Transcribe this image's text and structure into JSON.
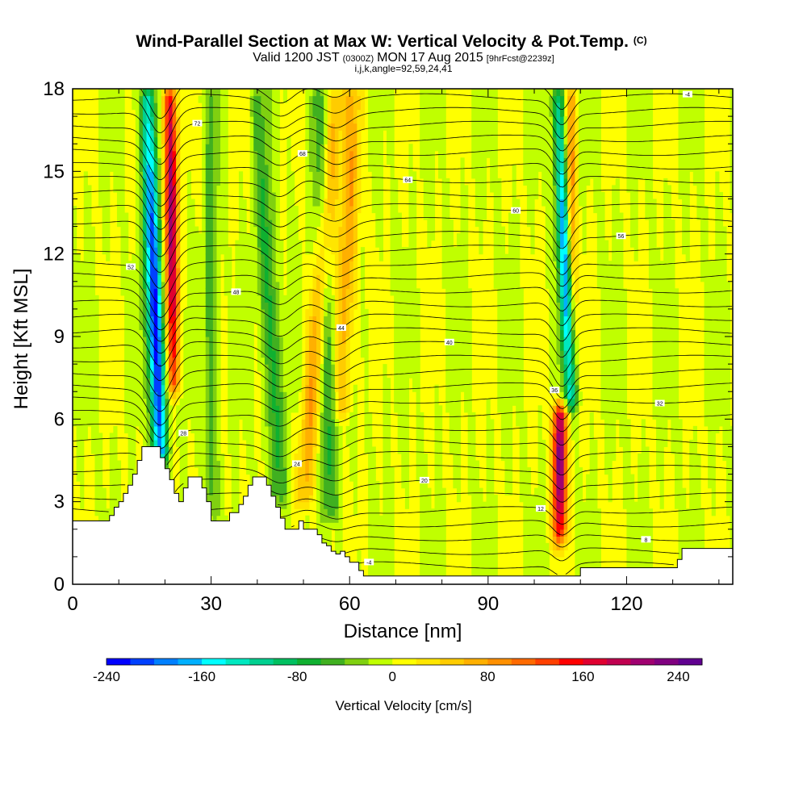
{
  "chart_data": {
    "type": "heatmap",
    "title": "Wind-Parallel Section at Max W: Vertical Velocity & Pot.Temp.",
    "title_mark": "(C)",
    "subtitle": {
      "prefix": "Valid 1200 JST",
      "zulu": "(0300Z)",
      "date": "MON 17 Aug 2015",
      "forecast": "[9hrFcst@2239z]"
    },
    "subtitle2": "i,j,k,angle=92,59,24,41",
    "xlabel": "Distance [nm]",
    "ylabel": "Height [Kft MSL]",
    "xlim": [
      0,
      143
    ],
    "ylim": [
      0,
      18
    ],
    "x_ticks": [
      0,
      30,
      60,
      90,
      120
    ],
    "y_ticks": [
      0,
      3,
      6,
      9,
      12,
      15,
      18
    ],
    "grid": false,
    "colorbar": {
      "label": "Vertical Velocity [cm/s]",
      "range": [
        -240,
        260
      ],
      "ticks": [
        -240,
        -160,
        -80,
        0,
        80,
        160,
        240
      ],
      "colors": [
        "#0000ff",
        "#0040ff",
        "#0080ff",
        "#00b0ff",
        "#00ffff",
        "#00e8c0",
        "#00d090",
        "#00c060",
        "#10b030",
        "#40b020",
        "#80d010",
        "#c0ff00",
        "#ffff00",
        "#ffe600",
        "#ffcc00",
        "#ffb000",
        "#ff9000",
        "#ff6a00",
        "#ff4000",
        "#ff0000",
        "#e00030",
        "#c00050",
        "#a00070",
        "#800080",
        "#600090"
      ]
    },
    "vertical_velocity_features": [
      {
        "name": "downdraft",
        "x_top": 16,
        "x_bottom": 19,
        "z_top": 18,
        "z_bottom": 4.5,
        "peak": -240,
        "peak_z": 9.5,
        "width": 1.6
      },
      {
        "name": "updraft",
        "x_top": 21,
        "x_bottom": 22,
        "z_top": 18,
        "z_bottom": 7,
        "peak": 220,
        "peak_z": 14,
        "width": 1.3
      },
      {
        "name": "sinking",
        "x_top": 30,
        "x_bottom": 30,
        "z_top": 18,
        "z_bottom": 2.5,
        "peak": -60,
        "peak_z": 10,
        "width": 1.5
      },
      {
        "name": "sinking",
        "x_top": 40,
        "x_bottom": 45,
        "z_top": 18,
        "z_bottom": 3,
        "peak": -80,
        "peak_z": 9,
        "width": 1.8
      },
      {
        "name": "sinking",
        "x_top": 53,
        "x_bottom": 56,
        "z_top": 18,
        "z_bottom": 2.5,
        "peak": -80,
        "peak_z": 9,
        "width": 1.8
      },
      {
        "name": "rising",
        "x_top": 57,
        "x_bottom": 50,
        "z_top": 18,
        "z_bottom": 3,
        "peak": 90,
        "peak_z": 10,
        "width": 2.0
      },
      {
        "name": "rising",
        "x_top": 61,
        "x_bottom": 58,
        "z_top": 18,
        "z_bottom": 6,
        "peak": 80,
        "peak_z": 12,
        "width": 2.0
      },
      {
        "name": "downdraft",
        "x_top": 105,
        "x_bottom": 108,
        "z_top": 18,
        "z_bottom": 6.5,
        "peak": -190,
        "peak_z": 11,
        "width": 1.4
      },
      {
        "name": "updraft",
        "x_top": 105.5,
        "x_bottom": 105.5,
        "z_top": 6.5,
        "z_bottom": 1.5,
        "peak": 240,
        "peak_z": 4.5,
        "width": 1.5
      },
      {
        "name": "rising",
        "x_top": 108,
        "x_bottom": 108,
        "z_top": 18,
        "z_bottom": 7,
        "peak": 90,
        "peak_z": 14,
        "width": 1.2
      }
    ],
    "potential_temperature_contours": {
      "interval_k": 1,
      "count": 36,
      "labels": [
        "-4",
        "8",
        "12",
        "20",
        "24",
        "28",
        "32",
        "36",
        "40",
        "44",
        "48",
        "52",
        "56",
        "60",
        "64",
        "68",
        "72"
      ]
    },
    "terrain": [
      [
        0,
        2.3
      ],
      [
        6,
        2.3
      ],
      [
        8,
        2.5
      ],
      [
        9,
        2.8
      ],
      [
        10,
        3.0
      ],
      [
        11,
        3.3
      ],
      [
        12,
        3.6
      ],
      [
        13,
        4.0
      ],
      [
        14,
        4.5
      ],
      [
        15,
        5.0
      ],
      [
        18,
        5.0
      ],
      [
        19,
        4.6
      ],
      [
        20,
        4.2
      ],
      [
        21,
        3.8
      ],
      [
        22,
        3.3
      ],
      [
        23,
        3.0
      ],
      [
        24,
        3.5
      ],
      [
        25,
        3.9
      ],
      [
        27,
        3.9
      ],
      [
        28,
        3.5
      ],
      [
        29,
        3.0
      ],
      [
        30,
        2.3
      ],
      [
        33,
        2.3
      ],
      [
        34,
        2.6
      ],
      [
        36,
        2.9
      ],
      [
        37,
        3.2
      ],
      [
        38,
        3.6
      ],
      [
        39,
        3.9
      ],
      [
        41,
        3.9
      ],
      [
        42,
        3.6
      ],
      [
        43,
        3.2
      ],
      [
        44,
        2.8
      ],
      [
        45,
        2.4
      ],
      [
        46,
        2.0
      ],
      [
        48,
        2.0
      ],
      [
        49,
        2.3
      ],
      [
        50,
        2.0
      ],
      [
        52,
        2.0
      ],
      [
        53,
        1.8
      ],
      [
        54,
        1.5
      ],
      [
        55,
        1.4
      ],
      [
        56,
        1.2
      ],
      [
        57,
        1.1
      ],
      [
        58,
        1.2
      ],
      [
        59,
        1.0
      ],
      [
        60,
        0.8
      ],
      [
        62,
        0.5
      ],
      [
        63,
        0.3
      ],
      [
        108,
        0.3
      ],
      [
        110,
        0.6
      ],
      [
        130,
        0.6
      ],
      [
        131,
        0.9
      ],
      [
        132,
        1.3
      ],
      [
        143,
        1.3
      ]
    ]
  }
}
